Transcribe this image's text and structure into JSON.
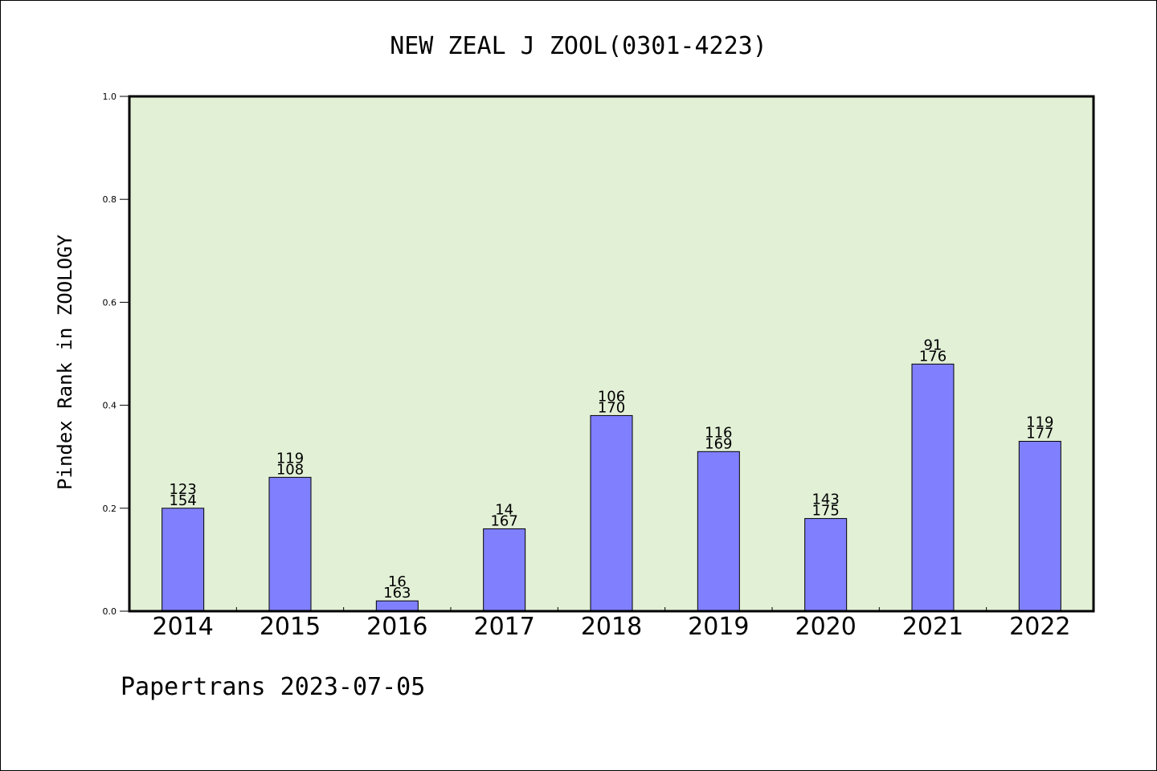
{
  "chart_data": {
    "type": "bar",
    "title": "NEW ZEAL J ZOOL(0301-4223)",
    "ylabel": "Pindex Rank in ZOOLOGY",
    "xlabel": "",
    "categories": [
      "2014",
      "2015",
      "2016",
      "2017",
      "2018",
      "2019",
      "2020",
      "2021",
      "2022"
    ],
    "values": [
      0.2,
      0.26,
      0.02,
      0.16,
      0.38,
      0.31,
      0.18,
      0.48,
      0.33
    ],
    "bar_labels": [
      [
        "123",
        "154"
      ],
      [
        "119",
        "108"
      ],
      [
        "16",
        "163"
      ],
      [
        "14",
        "167"
      ],
      [
        "106",
        "170"
      ],
      [
        "116",
        "169"
      ],
      [
        "143",
        "175"
      ],
      [
        "91",
        "176"
      ],
      [
        "119",
        "177"
      ]
    ],
    "ylim": [
      0,
      1.0
    ],
    "yticks": [
      "0.0",
      "0.2",
      "0.4",
      "0.6",
      "0.8",
      "1.0"
    ],
    "grid": false,
    "colors": {
      "plot_background": "#e2f0d6",
      "bar_fill": "#8080ff",
      "bar_stroke": "#000000"
    }
  },
  "footer": {
    "text": "Papertrans 2023-07-05"
  }
}
